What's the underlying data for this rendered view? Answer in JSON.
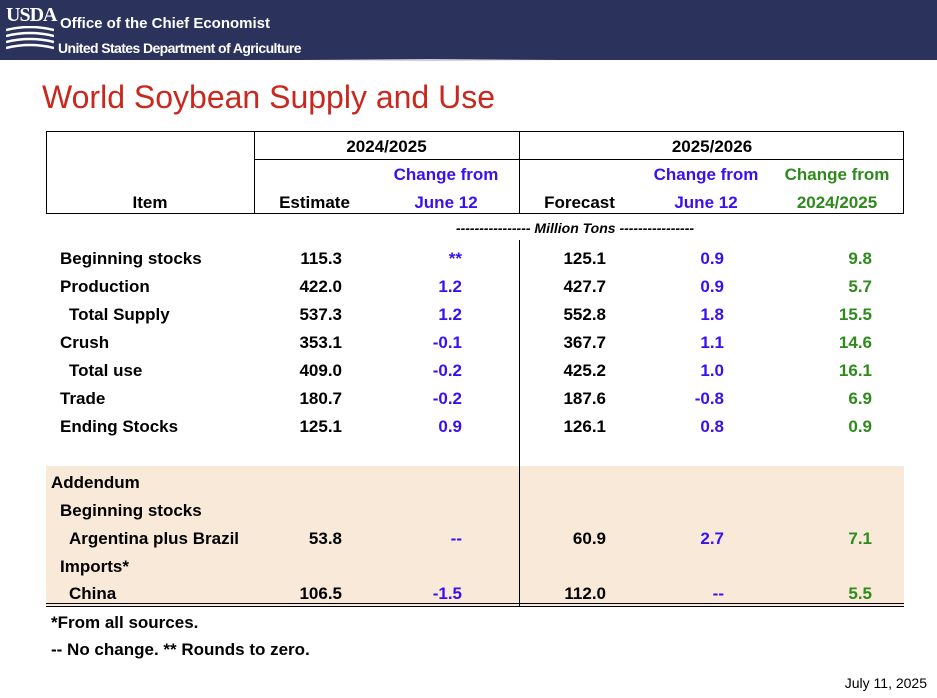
{
  "header": {
    "logo_text": "USDA",
    "org_line1": "Office of the Chief Economist",
    "org_line2": "United States Department of Agriculture"
  },
  "title": "World Soybean Supply and Use",
  "columns": {
    "item": "Item",
    "year1": "2024/2025",
    "year2": "2025/2026",
    "estimate": "Estimate",
    "forecast": "Forecast",
    "change_from": "Change from",
    "june12": "June 12",
    "prev_year": "2024/2025"
  },
  "units": "---------------- Million Tons ----------------",
  "rows": [
    {
      "label": "Beginning stocks",
      "est": "115.3",
      "chg1": "**",
      "fc": "125.1",
      "chg2": "0.9",
      "chg3": "9.8"
    },
    {
      "label": "Production",
      "est": "422.0",
      "chg1": "1.2",
      "fc": "427.7",
      "chg2": "0.9",
      "chg3": "5.7"
    },
    {
      "label": "Total Supply",
      "est": "537.3",
      "chg1": "1.2",
      "fc": "552.8",
      "chg2": "1.8",
      "chg3": "15.5"
    },
    {
      "label": "Crush",
      "est": "353.1",
      "chg1": "-0.1",
      "fc": "367.7",
      "chg2": "1.1",
      "chg3": "14.6"
    },
    {
      "label": "Total use",
      "est": "409.0",
      "chg1": "-0.2",
      "fc": "425.2",
      "chg2": "1.0",
      "chg3": "16.1"
    },
    {
      "label": "Trade",
      "est": "180.7",
      "chg1": "-0.2",
      "fc": "187.6",
      "chg2": "-0.8",
      "chg3": "6.9"
    },
    {
      "label": "Ending Stocks",
      "est": "125.1",
      "chg1": "0.9",
      "fc": "126.1",
      "chg2": "0.8",
      "chg3": "0.9"
    }
  ],
  "addendum": {
    "label": "Addendum",
    "beginning_stocks": "Beginning stocks",
    "arg_bra": {
      "label": "Argentina plus Brazil",
      "est": "53.8",
      "chg1": "--",
      "fc": "60.9",
      "chg2": "2.7",
      "chg3": "7.1"
    },
    "imports": "Imports*",
    "china": {
      "label": "China",
      "est": "106.5",
      "chg1": "-1.5",
      "fc": "112.0",
      "chg2": "--",
      "chg3": "5.5"
    }
  },
  "notes": {
    "line1": "*From all sources.",
    "line2": "-- No change.  ** Rounds to zero."
  },
  "date": "July 11, 2025",
  "colors": {
    "banner": "#2b335c",
    "title": "#c8281e",
    "change_june": "#3a0ff0",
    "change_year": "#2f8a1c",
    "addendum_bg": "#f8e9d8"
  }
}
